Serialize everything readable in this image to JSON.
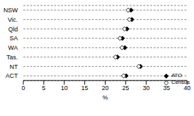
{
  "chart_data": {
    "type": "scatter",
    "categories": [
      "NSW",
      "Vic.",
      "Qld",
      "SA",
      "WA",
      "Tas.",
      "NT",
      "ACT"
    ],
    "xlabel": "%",
    "series": [
      {
        "name": "ATO",
        "color": "#000000",
        "marker": "diamond",
        "values": [
          26.3,
          26.5,
          25.3,
          24.2,
          24.8,
          23.0,
          28.6,
          25.1
        ]
      },
      {
        "name": "Census",
        "color": "#ffffff",
        "marker": "diamond",
        "values": [
          25.6,
          25.9,
          24.7,
          23.6,
          24.1,
          22.5,
          28.2,
          24.5
        ]
      }
    ],
    "xlim": [
      0,
      40
    ],
    "xticks": [
      0,
      5,
      10,
      15,
      20,
      25,
      30,
      35,
      40
    ],
    "grid": true,
    "legend": "lower right"
  }
}
